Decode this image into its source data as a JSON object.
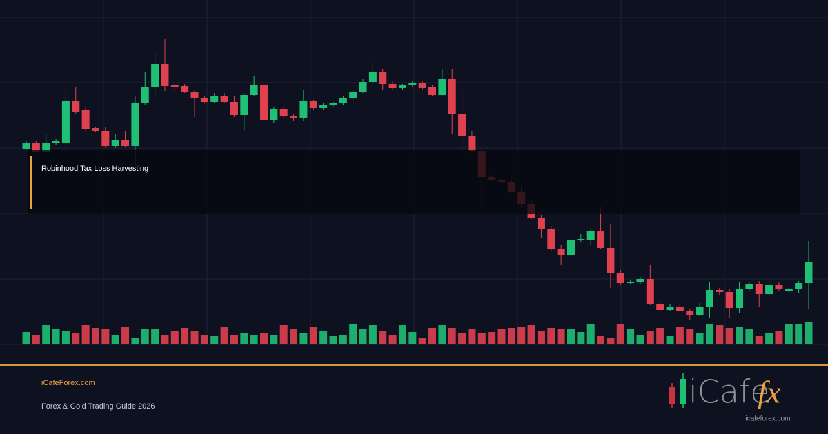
{
  "chart_data": {
    "type": "candlestick",
    "open": [
      284,
      292,
      280,
      292,
      292,
      353,
      340,
      314,
      310,
      288,
      297,
      288,
      350,
      374,
      407,
      376,
      375,
      367,
      358,
      352,
      361,
      352,
      333,
      362,
      376,
      326,
      342,
      332,
      328,
      353,
      343,
      348,
      351,
      358,
      367,
      381,
      396,
      378,
      372,
      376,
      380,
      374,
      362,
      385,
      335,
      303,
      281,
      243,
      239,
      236,
      222,
      204,
      184,
      168,
      139,
      130,
      151,
      152,
      165,
      140,
      104,
      89,
      91,
      95,
      59,
      50,
      55,
      48,
      43,
      54,
      79,
      76,
      53,
      80,
      88,
      73,
      86,
      78,
      80,
      89
    ],
    "high": [
      295,
      295,
      305,
      298,
      370,
      373,
      345,
      316,
      315,
      305,
      310,
      360,
      395,
      425,
      443,
      378,
      378,
      370,
      360,
      365,
      365,
      360,
      365,
      390,
      407,
      345,
      345,
      335,
      370,
      355,
      350,
      352,
      360,
      370,
      385,
      410,
      400,
      382,
      378,
      382,
      382,
      377,
      400,
      400,
      370,
      310,
      285,
      246,
      242,
      240,
      230,
      210,
      188,
      172,
      145,
      170,
      160,
      167,
      200,
      175,
      108,
      94,
      98,
      115,
      63,
      58,
      60,
      52,
      60,
      90,
      82,
      80,
      90,
      90,
      92,
      95,
      90,
      82,
      92,
      150
    ],
    "low": [
      282,
      278,
      278,
      290,
      285,
      335,
      310,
      308,
      285,
      285,
      286,
      260,
      348,
      360,
      368,
      370,
      365,
      330,
      350,
      350,
      350,
      330,
      310,
      360,
      275,
      322,
      328,
      325,
      325,
      340,
      340,
      345,
      348,
      355,
      365,
      378,
      370,
      370,
      370,
      373,
      370,
      360,
      360,
      305,
      280,
      278,
      195,
      237,
      234,
      220,
      200,
      182,
      155,
      135,
      115,
      118,
      148,
      145,
      138,
      82,
      87,
      88,
      88,
      57,
      48,
      48,
      45,
      35,
      41,
      38,
      72,
      38,
      45,
      77,
      55,
      70,
      78,
      76,
      75,
      52
    ],
    "close": [
      292,
      280,
      293,
      295,
      353,
      338,
      313,
      310,
      288,
      297,
      288,
      350,
      374,
      407,
      375,
      373,
      367,
      358,
      352,
      361,
      352,
      333,
      362,
      376,
      326,
      342,
      332,
      328,
      353,
      343,
      348,
      351,
      358,
      367,
      381,
      396,
      378,
      372,
      376,
      380,
      372,
      362,
      385,
      335,
      303,
      281,
      243,
      239,
      236,
      222,
      204,
      184,
      168,
      139,
      130,
      151,
      153,
      165,
      140,
      104,
      89,
      90,
      95,
      59,
      50,
      55,
      48,
      43,
      54,
      79,
      76,
      53,
      80,
      88,
      73,
      86,
      80,
      80,
      89,
      119
    ],
    "volume": [
      18,
      14,
      28,
      22,
      20,
      16,
      28,
      24,
      22,
      14,
      26,
      10,
      22,
      22,
      14,
      20,
      24,
      20,
      14,
      12,
      26,
      14,
      16,
      14,
      16,
      14,
      28,
      22,
      16,
      26,
      20,
      12,
      14,
      30,
      22,
      28,
      20,
      14,
      28,
      18,
      10,
      24,
      28,
      24,
      16,
      22,
      16,
      18,
      22,
      24,
      26,
      28,
      20,
      24,
      22,
      22,
      18,
      30,
      12,
      10,
      30,
      22,
      14,
      20,
      24,
      12,
      26,
      22,
      16,
      30,
      28,
      24,
      26,
      22,
      12,
      16,
      20,
      30,
      30,
      32
    ],
    "ylim": [
      0,
      475
    ],
    "volume_lim": [
      0,
      475
    ],
    "up_color": "#1fbf75",
    "down_color": "#e0414f",
    "grid": true,
    "annotation": "Robinhood Tax Loss Harvesting"
  },
  "footer": {
    "site": "iCafeForex.com",
    "subtitle": "Forex & Gold Trading Guide 2026"
  },
  "logo": {
    "text": "iCafe",
    "accent": "fx",
    "url": "icafeforex.com"
  }
}
